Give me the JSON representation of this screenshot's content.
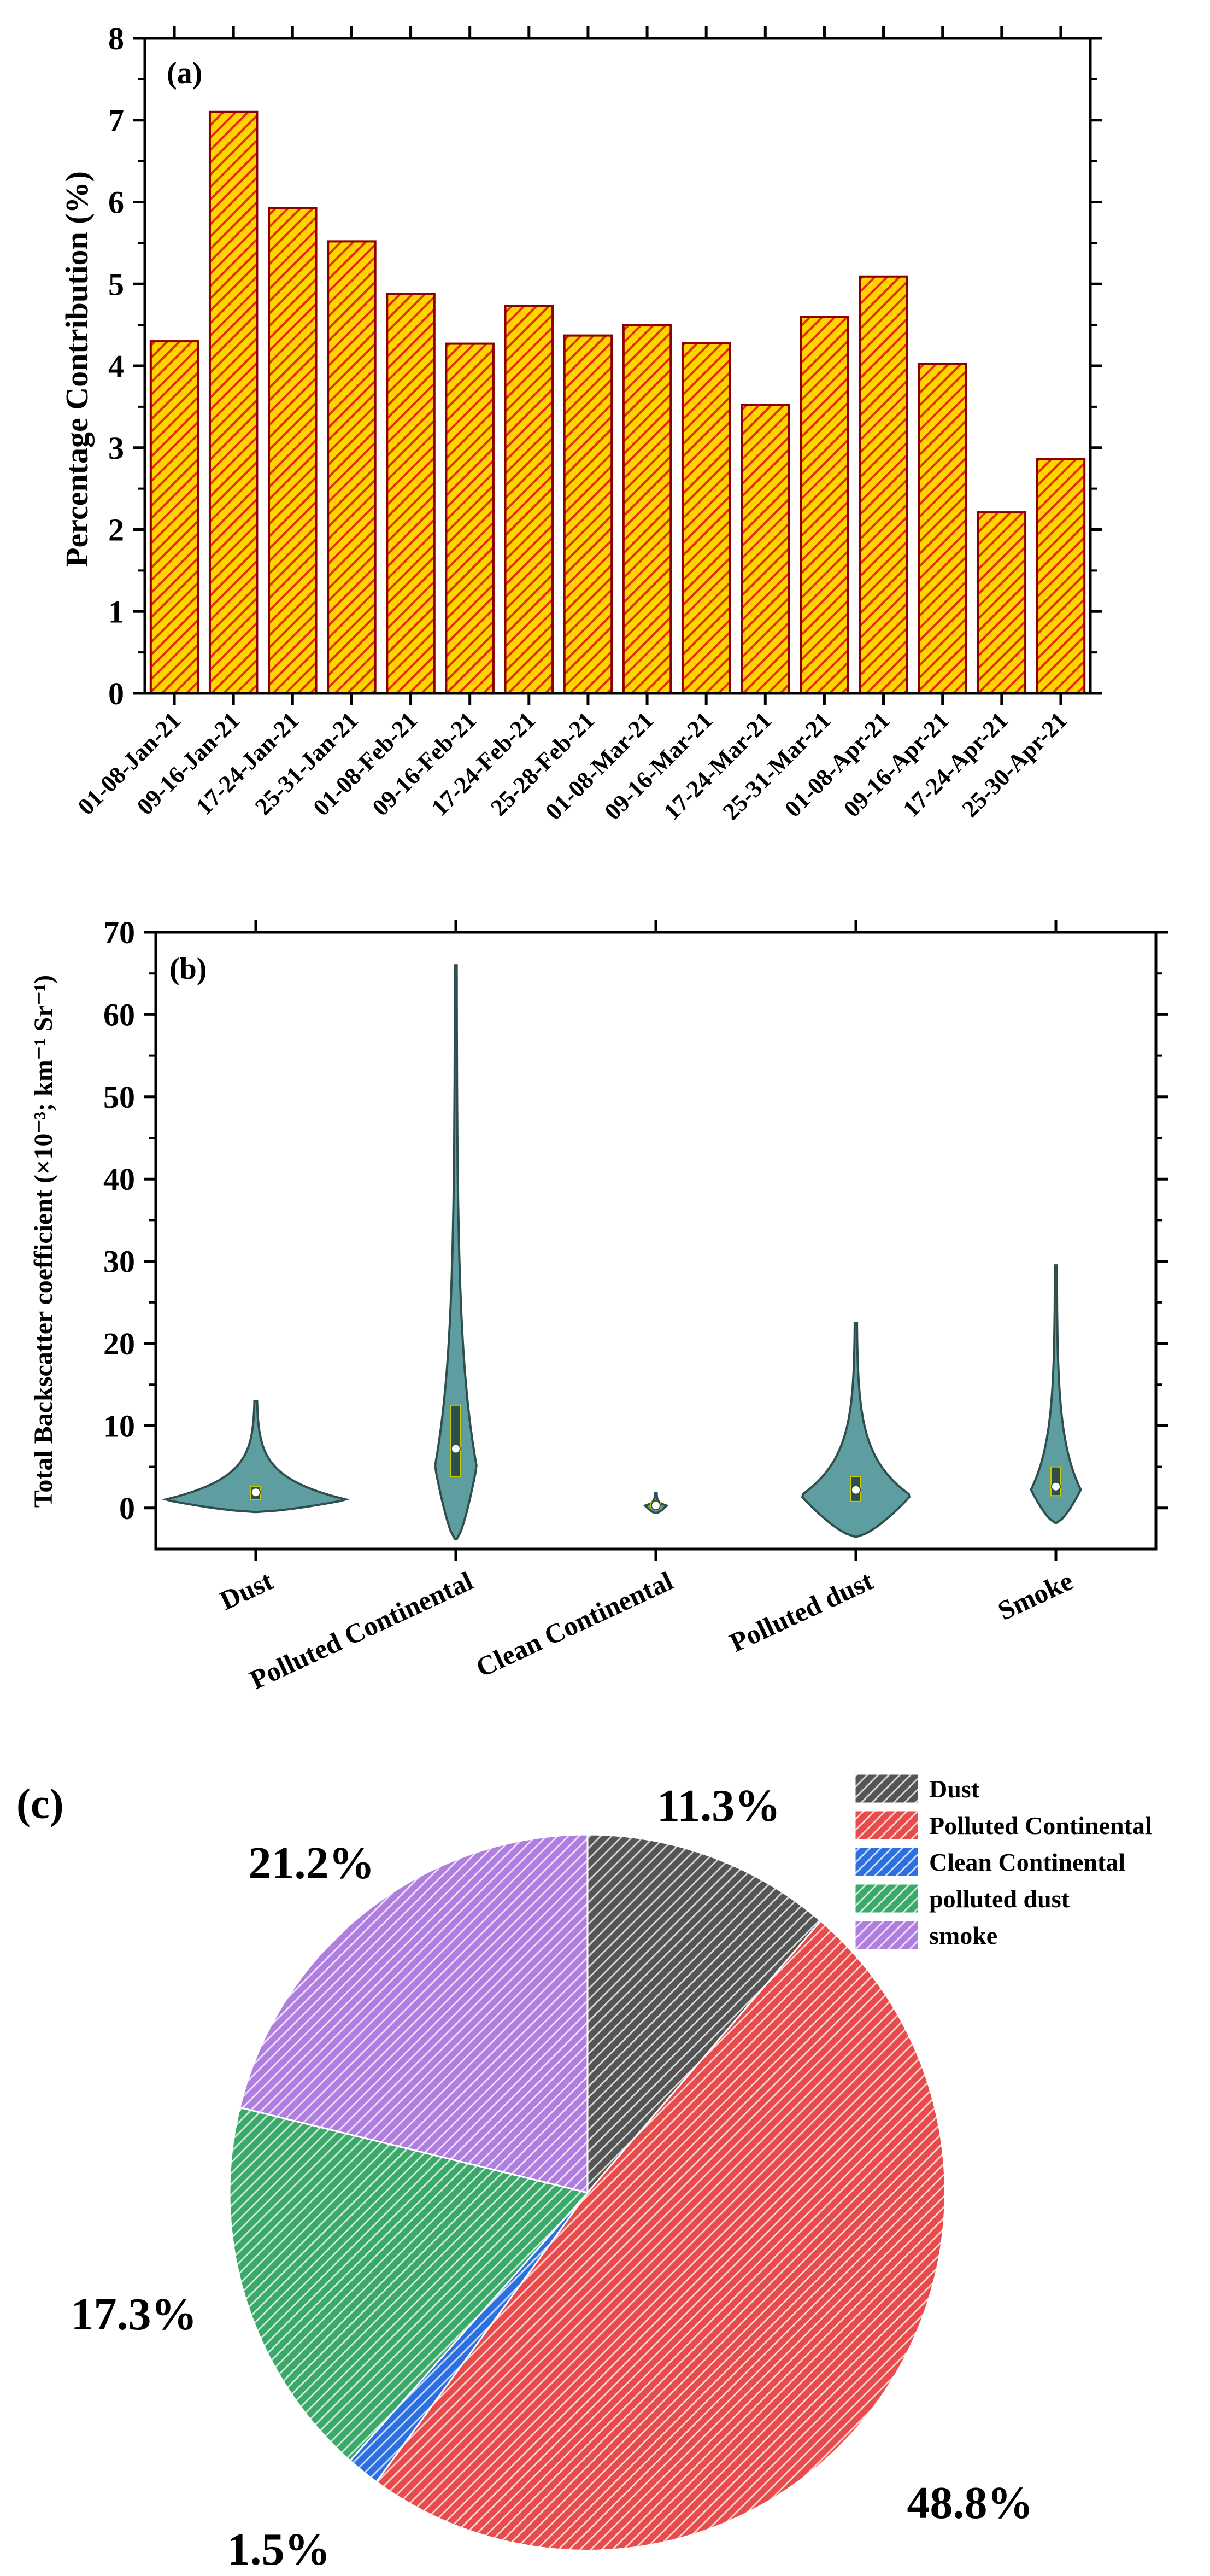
{
  "colors": {
    "bar_fill": "#ffd400",
    "bar_edge": "#8b0000",
    "violin_fill": "#5f9ea0",
    "violin_edge": "#2f4f4f",
    "box_dark": "#2f4f4f",
    "accent_yellow": "#c8c800",
    "dust": "#555555",
    "polluted_continental": "#e84b4b",
    "clean_continental": "#2b6fe0",
    "polluted_dust": "#3aa96a",
    "smoke": "#b07ee0"
  },
  "chart_data": [
    {
      "type": "bar",
      "panel": "(a)",
      "title": "",
      "xlabel": "",
      "ylabel": "Percentage Contribution (%)",
      "ylim": [
        0,
        8
      ],
      "yticks": [
        0,
        1,
        2,
        3,
        4,
        5,
        6,
        7,
        8
      ],
      "grid": false,
      "categories": [
        "01-08-Jan-21",
        "09-16-Jan-21",
        "17-24-Jan-21",
        "25-31-Jan-21",
        "01-08-Feb-21",
        "09-16-Feb-21",
        "17-24-Feb-21",
        "25-28-Feb-21",
        "01-08-Mar-21",
        "09-16-Mar-21",
        "17-24-Mar-21",
        "25-31-Mar-21",
        "01-08-Apr-21",
        "09-16-Apr-21",
        "17-24-Apr-21",
        "25-30-Apr-21"
      ],
      "values": [
        4.3,
        7.1,
        5.93,
        5.52,
        4.88,
        4.27,
        4.73,
        4.37,
        4.5,
        4.28,
        3.52,
        4.6,
        5.09,
        4.02,
        2.21,
        2.86
      ]
    },
    {
      "type": "violin",
      "panel": "(b)",
      "title": "",
      "xlabel": "",
      "ylabel": "Total Backscatter coefficient (×10⁻³; km⁻¹ Sr⁻¹)",
      "ylim": [
        -5,
        70
      ],
      "yticks": [
        0,
        10,
        20,
        30,
        40,
        50,
        60,
        70
      ],
      "grid": false,
      "categories": [
        "Dust",
        "Polluted Continental",
        "Clean Continental",
        "Polluted dust",
        "Smoke"
      ],
      "series": [
        {
          "name": "Dust",
          "min": -0.5,
          "max": 13,
          "q1": 1.0,
          "q3": 2.6,
          "median": 1.6,
          "mean": 1.9,
          "peak": 1.0,
          "max_half_width": 0.45
        },
        {
          "name": "Polluted Continental",
          "min": -3.8,
          "max": 66,
          "q1": 3.8,
          "q3": 12.5,
          "median": 7.2,
          "mean": 7.2,
          "peak": 5.0,
          "max_half_width": 0.1
        },
        {
          "name": "Clean Continental",
          "min": -0.6,
          "max": 1.8,
          "q1": 0.0,
          "q3": 0.7,
          "median": 0.3,
          "mean": 0.3,
          "peak": 0.3,
          "max_half_width": 0.05
        },
        {
          "name": "Polluted dust",
          "min": -3.5,
          "max": 22.5,
          "q1": 0.8,
          "q3": 3.8,
          "median": 2.0,
          "mean": 2.2,
          "peak": 1.5,
          "max_half_width": 0.27
        },
        {
          "name": "Smoke",
          "min": -1.8,
          "max": 29.5,
          "q1": 1.5,
          "q3": 5.0,
          "median": 2.6,
          "mean": 2.6,
          "peak": 2.2,
          "max_half_width": 0.12
        }
      ]
    },
    {
      "type": "pie",
      "panel": "(c)",
      "title": "",
      "legend_position": "top-right",
      "labels": [
        "Dust",
        "Polluted Continental",
        "Clean Continental",
        "polluted dust",
        "smoke"
      ],
      "values": [
        11.3,
        48.8,
        1.5,
        17.3,
        21.2
      ],
      "value_labels": [
        "11.3%",
        "48.8%",
        "1.5%",
        "17.3%",
        "21.2%"
      ]
    }
  ]
}
